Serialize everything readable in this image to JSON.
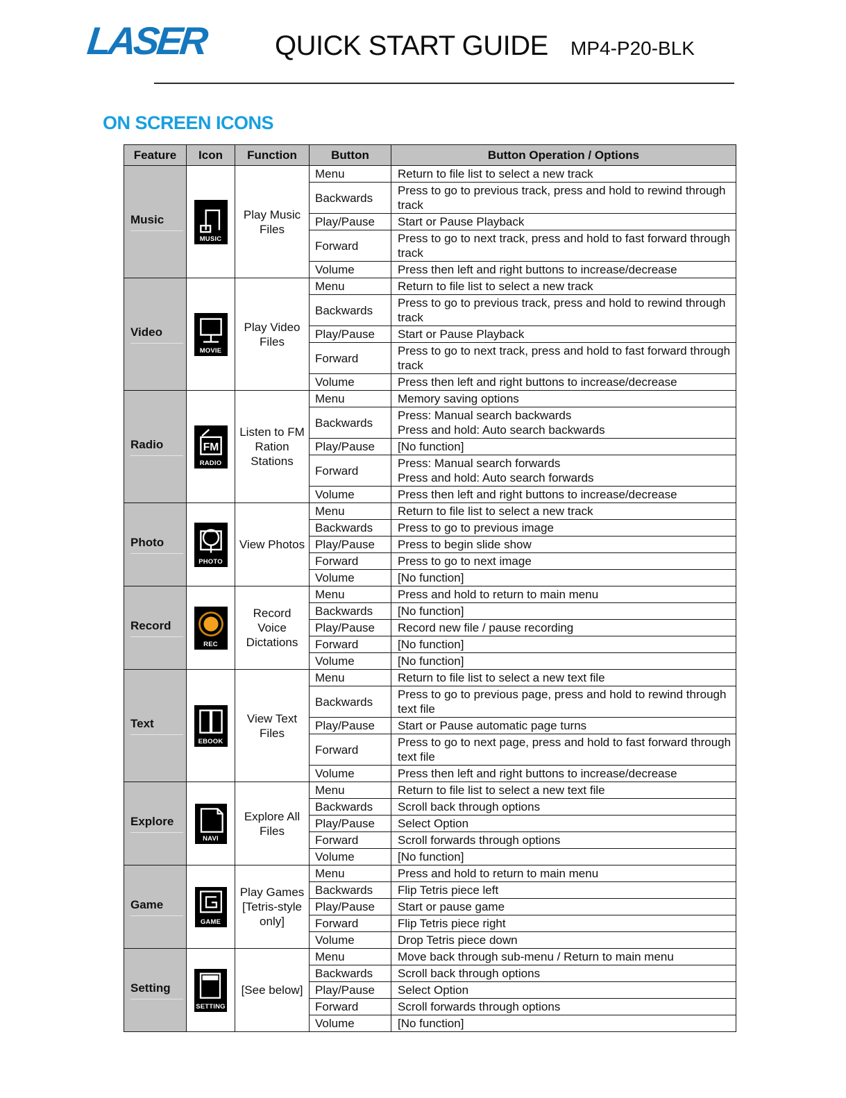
{
  "header": {
    "logo_text": "LASER",
    "title": "QUICK START GUIDE",
    "model": "MP4-P20-BLK"
  },
  "section_title": "ON SCREEN ICONS",
  "colors": {
    "logo_blue": "#1577bd",
    "section_blue": "#189fe0",
    "table_header_gray": "#c2c2c2",
    "rec_orange": "#f2a11c"
  },
  "table": {
    "columns": [
      "Feature",
      "Icon",
      "Function",
      "Button",
      "Button Operation / Options"
    ],
    "rows": [
      {
        "feature": "Music",
        "icon": "music-icon",
        "icon_label": "MUSIC",
        "function": "Play Music Files",
        "buttons": [
          {
            "button": "Menu",
            "operation": "Return to file list to select a new track"
          },
          {
            "button": "Backwards",
            "operation": "Press to go to previous track, press and hold to rewind through track"
          },
          {
            "button": "Play/Pause",
            "operation": "Start or Pause Playback"
          },
          {
            "button": "Forward",
            "operation": "Press to go to next track, press and hold to fast forward through track"
          },
          {
            "button": "Volume",
            "operation": "Press then left and right buttons to increase/decrease"
          }
        ]
      },
      {
        "feature": "Video",
        "icon": "movie-icon",
        "icon_label": "MOVIE",
        "function": "Play Video Files",
        "buttons": [
          {
            "button": "Menu",
            "operation": "Return to file list to select a new track"
          },
          {
            "button": "Backwards",
            "operation": "Press to go to previous track, press and hold to rewind through track"
          },
          {
            "button": "Play/Pause",
            "operation": "Start or Pause Playback"
          },
          {
            "button": "Forward",
            "operation": "Press to go to next track, press and hold to fast forward through track"
          },
          {
            "button": "Volume",
            "operation": "Press then left and right buttons to increase/decrease"
          }
        ]
      },
      {
        "feature": "Radio",
        "icon": "fm-radio-icon",
        "icon_label": "RADIO",
        "function": "Listen to FM Ration Stations",
        "buttons": [
          {
            "button": "Menu",
            "operation": "Memory saving options"
          },
          {
            "button": "Backwards",
            "operation": "Press: Manual search backwards\nPress and hold: Auto search backwards"
          },
          {
            "button": "Play/Pause",
            "operation": "[No function]"
          },
          {
            "button": "Forward",
            "operation": "Press: Manual search forwards\nPress and hold: Auto search forwards"
          },
          {
            "button": "Volume",
            "operation": "Press then left and right buttons to increase/decrease"
          }
        ]
      },
      {
        "feature": "Photo",
        "icon": "photo-icon",
        "icon_label": "PHOTO",
        "function": "View Photos",
        "buttons": [
          {
            "button": "Menu",
            "operation": "Return to file list to select a new track"
          },
          {
            "button": "Backwards",
            "operation": "Press to go to previous image"
          },
          {
            "button": "Play/Pause",
            "operation": "Press to begin slide show"
          },
          {
            "button": "Forward",
            "operation": "Press to go to next image"
          },
          {
            "button": "Volume",
            "operation": "[No function]"
          }
        ]
      },
      {
        "feature": "Record",
        "icon": "rec-icon",
        "icon_label": "REC",
        "function": "Record Voice Dictations",
        "buttons": [
          {
            "button": "Menu",
            "operation": "Press and hold to return to main menu"
          },
          {
            "button": "Backwards",
            "operation": "[No function]"
          },
          {
            "button": "Play/Pause",
            "operation": "Record new file / pause recording"
          },
          {
            "button": "Forward",
            "operation": "[No function]"
          },
          {
            "button": "Volume",
            "operation": "[No function]"
          }
        ]
      },
      {
        "feature": "Text",
        "icon": "ebook-icon",
        "icon_label": "EBOOK",
        "function": "View Text Files",
        "buttons": [
          {
            "button": "Menu",
            "operation": "Return to file list to select a new text file"
          },
          {
            "button": "Backwards",
            "operation": "Press to go to previous page, press and hold to rewind through text file"
          },
          {
            "button": "Play/Pause",
            "operation": "Start or Pause automatic page turns"
          },
          {
            "button": "Forward",
            "operation": "Press to go to next page, press and hold to fast forward through text file"
          },
          {
            "button": "Volume",
            "operation": "Press then left and right buttons to increase/decrease"
          }
        ]
      },
      {
        "feature": "Explore",
        "icon": "navi-file-icon",
        "icon_label": "NAVI",
        "function": "Explore All Files",
        "buttons": [
          {
            "button": "Menu",
            "operation": "Return to file list to select a new text file"
          },
          {
            "button": "Backwards",
            "operation": "Scroll back through options"
          },
          {
            "button": "Play/Pause",
            "operation": "Select Option"
          },
          {
            "button": "Forward",
            "operation": "Scroll forwards through options"
          },
          {
            "button": "Volume",
            "operation": "[No function]"
          }
        ]
      },
      {
        "feature": "Game",
        "icon": "game-icon",
        "icon_label": "GAME",
        "function": "Play Games [Tetris-style only]",
        "buttons": [
          {
            "button": "Menu",
            "operation": "Press and hold to return to main menu"
          },
          {
            "button": "Backwards",
            "operation": "Flip Tetris piece left"
          },
          {
            "button": "Play/Pause",
            "operation": "Start or pause game"
          },
          {
            "button": "Forward",
            "operation": "Flip Tetris piece right"
          },
          {
            "button": "Volume",
            "operation": "Drop Tetris piece down"
          }
        ]
      },
      {
        "feature": "Setting",
        "icon": "setting-icon",
        "icon_label": "SETTING",
        "function": "[See below]",
        "buttons": [
          {
            "button": "Menu",
            "operation": "Move back through sub-menu / Return to main menu"
          },
          {
            "button": "Backwards",
            "operation": "Scroll back through options"
          },
          {
            "button": "Play/Pause",
            "operation": "Select Option"
          },
          {
            "button": "Forward",
            "operation": "Scroll forwards through options"
          },
          {
            "button": "Volume",
            "operation": "[No function]"
          }
        ]
      }
    ]
  }
}
